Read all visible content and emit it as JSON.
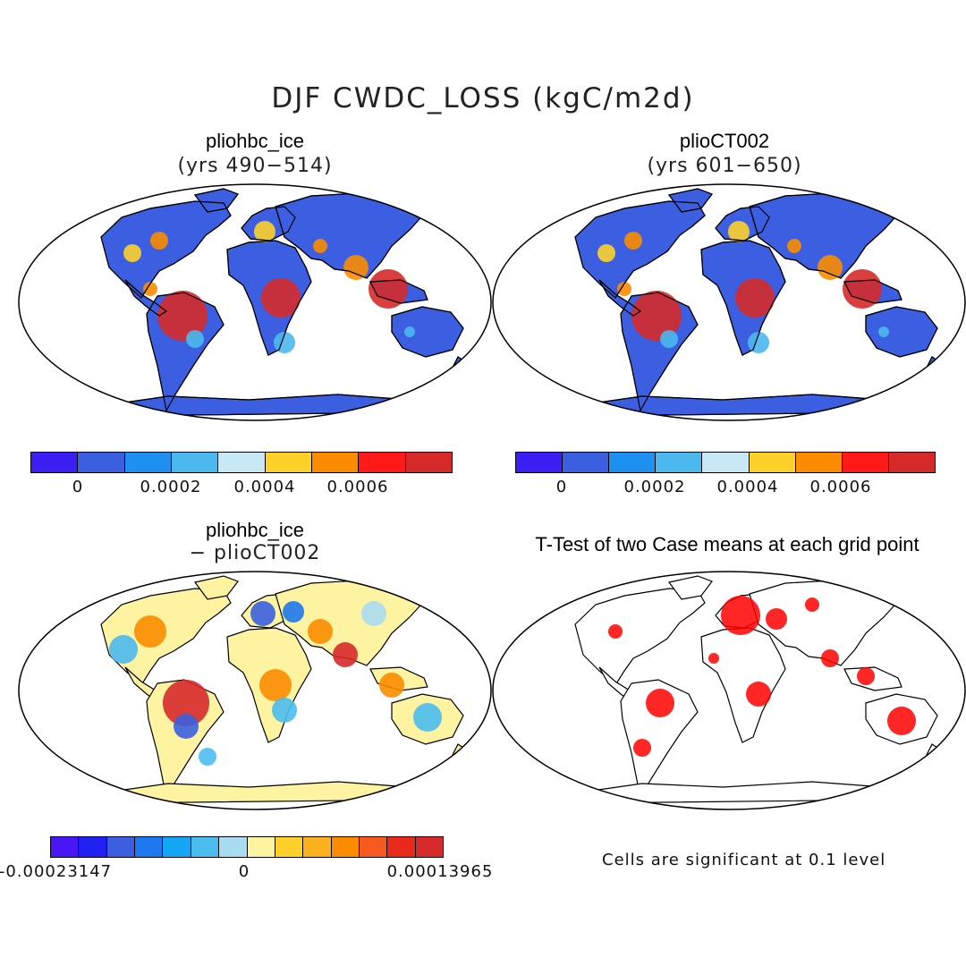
{
  "title": "DJF CWDC_LOSS (kgC/m2d)",
  "panels": [
    {
      "title": "pliohbc_ice",
      "subtitle": "(yrs 490−514)",
      "kind": "field"
    },
    {
      "title": "plioCT002",
      "subtitle": "(yrs 601−650)",
      "kind": "field"
    },
    {
      "title": "pliohbc_ice",
      "subtitle": "− plioCT002",
      "kind": "diff"
    },
    {
      "title": "T-Test of two Case means at each grid point",
      "subtitle": "",
      "kind": "ttest"
    }
  ],
  "colorbar_abs": {
    "colors": [
      "#3b1ff5",
      "#3b5fe0",
      "#1e90f0",
      "#4bb8ee",
      "#c8e8f6",
      "#fdd12a",
      "#fb8c00",
      "#ff1a1a",
      "#d62a2a"
    ],
    "labels": [
      "0",
      "0.0002",
      "0.0004",
      "0.0006"
    ]
  },
  "colorbar_diff": {
    "colors": [
      "#4b16f5",
      "#2020f0",
      "#3b5fe0",
      "#1e78f0",
      "#14a5f5",
      "#4bbcee",
      "#a8dcf0",
      "#fef3a0",
      "#fdd12a",
      "#fbb020",
      "#fb8c00",
      "#f75a1e",
      "#e82a1a",
      "#d62a2a"
    ],
    "labels": [
      "-0.00023147",
      "0",
      "0.00013965"
    ]
  },
  "significance_note": "Cells are significant at 0.1 level",
  "colors": {
    "ocean": "#ffffff",
    "coast": "#000000",
    "significant": "#ff0000",
    "diff_background": "#fef3a0",
    "field_background": "#3b5fe0"
  }
}
